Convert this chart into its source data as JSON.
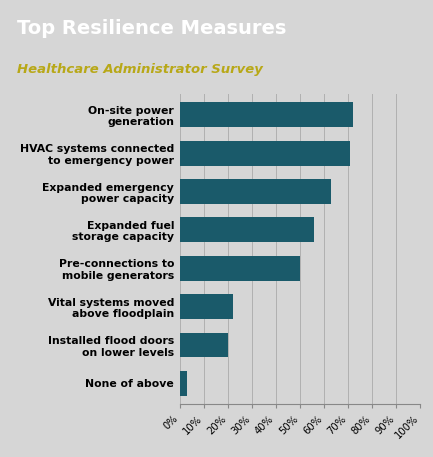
{
  "title": "Top Resilience Measures",
  "subtitle": "Healthcare Administrator Survey",
  "title_bg_color": "#1a5060",
  "title_text_color": "#ffffff",
  "subtitle_text_color": "#b8a818",
  "bar_color": "#1a5a6a",
  "bg_color": "#d6d6d6",
  "categories": [
    "On-site power\ngeneration",
    "HVAC systems connected\nto emergency power",
    "Expanded emergency\npower capacity",
    "Expanded fuel\nstorage capacity",
    "Pre-connections to\nmobile generators",
    "Vital systems moved\nabove floodplain",
    "Installed flood doors\non lower levels",
    "None of above"
  ],
  "values": [
    72,
    71,
    63,
    56,
    50,
    22,
    20,
    3
  ],
  "xlim": [
    0,
    100
  ],
  "xticks": [
    0,
    10,
    20,
    30,
    40,
    50,
    60,
    70,
    80,
    90,
    100
  ],
  "xtick_labels": [
    "0%",
    "10%",
    "20%",
    "30%",
    "40%",
    "50%",
    "60%",
    "70%",
    "80%",
    "90%",
    "100%"
  ]
}
